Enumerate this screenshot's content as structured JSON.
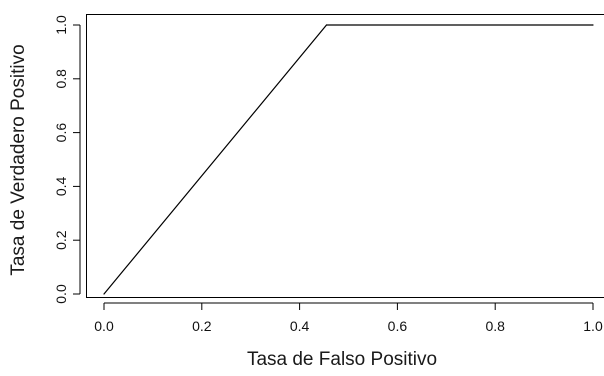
{
  "chart_data": {
    "type": "line",
    "title": "",
    "xlabel": "Tasa de Falso Positivo",
    "ylabel": "Tasa de Verdadero Positivo",
    "xlim": [
      -0.04,
      1.0
    ],
    "ylim": [
      -0.04,
      1.04
    ],
    "x_ticks": [
      0.0,
      0.2,
      0.4,
      0.6,
      0.8,
      1.0
    ],
    "x_tick_labels": [
      "0.0",
      "0.2",
      "0.4",
      "0.6",
      "0.8",
      "1.0"
    ],
    "y_ticks": [
      0.0,
      0.2,
      0.4,
      0.6,
      0.8,
      1.0
    ],
    "y_tick_labels": [
      "0.0",
      "0.2",
      "0.4",
      "0.6",
      "0.8",
      "1.0"
    ],
    "grid": false,
    "legend": "none",
    "series": [
      {
        "color": "#000000",
        "x": [
          0.0,
          0.455,
          1.0
        ],
        "y": [
          0.0,
          1.0,
          1.0
        ]
      }
    ]
  }
}
